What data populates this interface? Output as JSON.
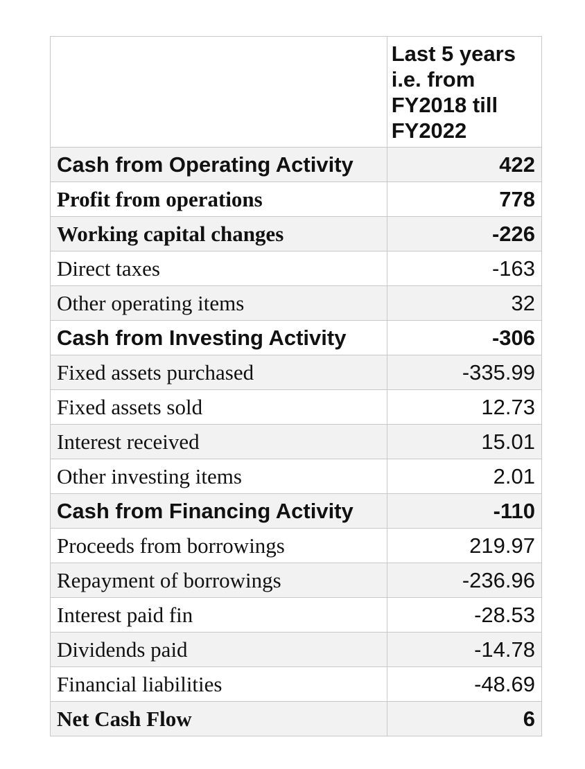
{
  "table": {
    "column_header": "Last 5 years i.e. from FY2018 till FY2022",
    "rows": [
      {
        "label": "Cash from Operating Activity",
        "value": "422",
        "bold": true,
        "font": "sans"
      },
      {
        "label": "Profit from operations",
        "value": "778",
        "bold": true,
        "font": "serif"
      },
      {
        "label": "Working capital changes",
        "value": "-226",
        "bold": true,
        "font": "serif"
      },
      {
        "label": "Direct taxes",
        "value": "-163",
        "bold": false,
        "font": "serif"
      },
      {
        "label": "Other operating items",
        "value": "32",
        "bold": false,
        "font": "serif"
      },
      {
        "label": "Cash from Investing Activity",
        "value": "-306",
        "bold": true,
        "font": "sans"
      },
      {
        "label": "Fixed assets purchased",
        "value": "-335.99",
        "bold": false,
        "font": "serif"
      },
      {
        "label": "Fixed assets sold",
        "value": "12.73",
        "bold": false,
        "font": "serif"
      },
      {
        "label": "Interest received",
        "value": "15.01",
        "bold": false,
        "font": "serif"
      },
      {
        "label": "Other investing items",
        "value": "2.01",
        "bold": false,
        "font": "serif"
      },
      {
        "label": "Cash from Financing Activity",
        "value": "-110",
        "bold": true,
        "font": "sans"
      },
      {
        "label": "Proceeds from borrowings",
        "value": "219.97",
        "bold": false,
        "font": "serif"
      },
      {
        "label": "Repayment of borrowings",
        "value": "-236.96",
        "bold": false,
        "font": "serif"
      },
      {
        "label": "Interest paid fin",
        "value": "-28.53",
        "bold": false,
        "font": "serif"
      },
      {
        "label": "Dividends paid",
        "value": "-14.78",
        "bold": false,
        "font": "serif"
      },
      {
        "label": "Financial liabilities",
        "value": "-48.69",
        "bold": false,
        "font": "serif"
      },
      {
        "label": "Net Cash Flow",
        "value": "6",
        "bold": true,
        "font": "serif"
      }
    ]
  }
}
